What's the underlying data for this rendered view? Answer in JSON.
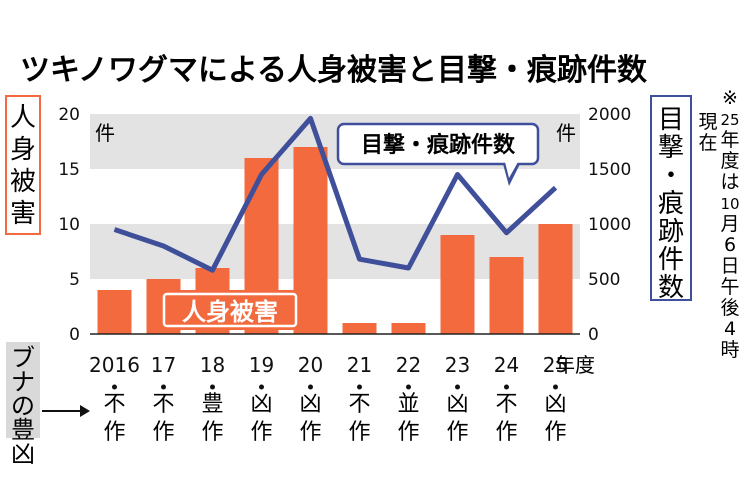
{
  "chart_data": {
    "type": "bar",
    "title": "ツキノワグマによる人身被害と目撃・痕跡件数",
    "categories": [
      "2016",
      "17",
      "18",
      "19",
      "20",
      "21",
      "22",
      "23",
      "24",
      "25"
    ],
    "x_unit": "年度",
    "left_axis": {
      "label": "人身被害",
      "unit": "件",
      "ylim": [
        0,
        20
      ],
      "ticks": [
        "0",
        "5",
        "10",
        "15",
        "20"
      ]
    },
    "right_axis": {
      "label": "目撃・痕跡件数",
      "unit": "件",
      "ylim": [
        0,
        2000
      ],
      "ticks": [
        "0",
        "500",
        "1000",
        "1500",
        "2000"
      ]
    },
    "series": [
      {
        "name": "人身被害",
        "type": "bar",
        "axis": "left",
        "color": "#f26a3d",
        "values": [
          4,
          5,
          6,
          16,
          17,
          1,
          1,
          9,
          7,
          10
        ]
      },
      {
        "name": "目撃・痕跡件数",
        "type": "line",
        "axis": "right",
        "color": "#3f4f9a",
        "values": [
          950,
          800,
          580,
          1450,
          1960,
          680,
          600,
          1450,
          920,
          1330
        ]
      }
    ],
    "grid": "alternating horizontal bands",
    "legend": "labels inside plot",
    "note": "※25年度は10月6日午後4時現在",
    "mast_label": "ブナの豊凶",
    "mast": [
      "不作",
      "不作",
      "豊作",
      "凶作",
      "凶作",
      "不作",
      "並作",
      "凶作",
      "不作",
      "凶作"
    ]
  }
}
